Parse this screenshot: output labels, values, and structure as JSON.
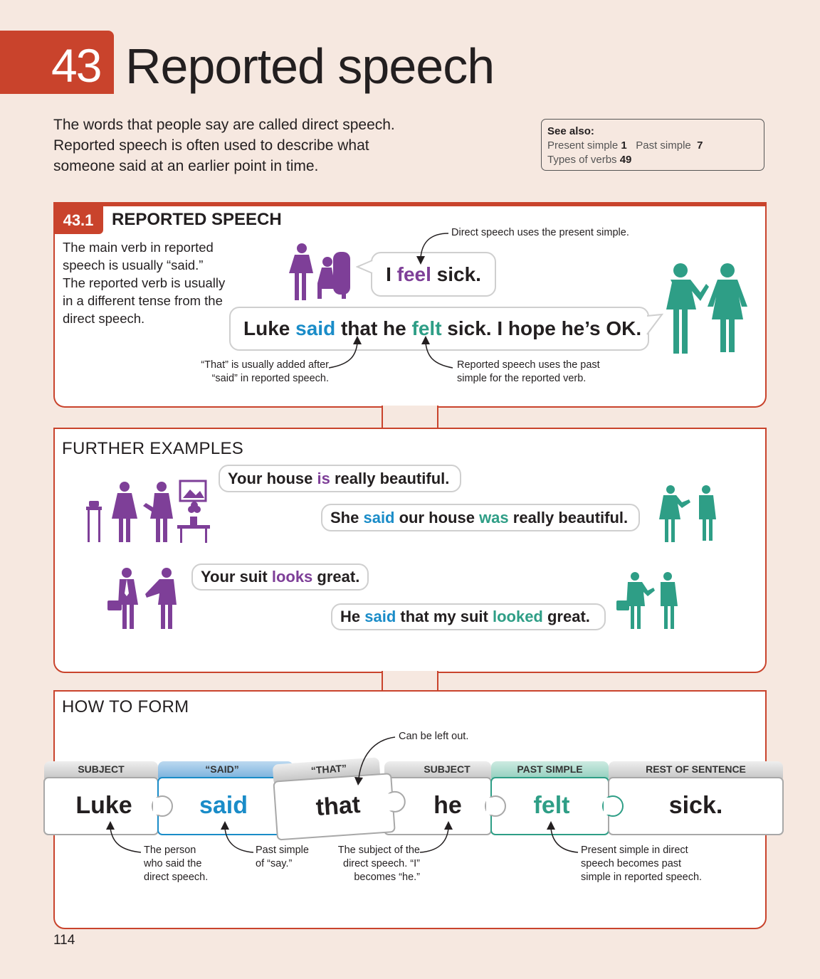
{
  "header": {
    "number": "43",
    "title": "Reported speech"
  },
  "intro": "The words that people say are called direct speech. Reported speech is often used to describe what someone said at an earlier point in time.",
  "see_also": {
    "label": "See also:",
    "items": [
      {
        "text": "Present simple",
        "num": "1"
      },
      {
        "text": "Past simple",
        "num": "7"
      },
      {
        "text": "Types of verbs",
        "num": "49"
      }
    ]
  },
  "section1": {
    "tag": "43.1",
    "title": "REPORTED SPEECH",
    "description": "The main verb in reported speech is usually “said.” The reported verb is usually in a different tense from the direct speech.",
    "direct": {
      "pre": "I ",
      "verb": "feel",
      "post": " sick."
    },
    "reported": {
      "w1": "Luke ",
      "said": "said",
      "w2": " that he ",
      "felt": "felt",
      "w3": " sick. I hope he’s OK."
    },
    "notes": {
      "direct": "Direct speech uses the present simple.",
      "that": "“That” is usually added after “said” in reported speech.",
      "past": "Reported speech uses the past simple for the reported verb."
    }
  },
  "further": {
    "label": "FURTHER EXAMPLES",
    "ex1_direct": {
      "pre": "Your house ",
      "verb": "is",
      "post": " really beautiful."
    },
    "ex1_reported": {
      "pre": "She ",
      "said": "said",
      "mid": " our house ",
      "verb": "was",
      "post": " really beautiful."
    },
    "ex2_direct": {
      "pre": "Your suit ",
      "verb": "looks",
      "post": " great."
    },
    "ex2_reported": {
      "pre": "He ",
      "said": "said",
      "mid": " that my suit ",
      "verb": "looked",
      "post": " great."
    }
  },
  "how_to_form": {
    "label": "HOW TO FORM",
    "pieces": [
      {
        "label": "SUBJECT",
        "word": "Luke"
      },
      {
        "label": "“SAID”",
        "word": "said"
      },
      {
        "label": "“THAT”",
        "word": "that"
      },
      {
        "label": "SUBJECT",
        "word": "he"
      },
      {
        "label": "PAST SIMPLE",
        "word": "felt"
      },
      {
        "label": "REST OF SENTENCE",
        "word": "sick."
      }
    ],
    "notes": {
      "left_out": "Can be left out.",
      "person": "The person who said the direct speech.",
      "past_say": "Past simple of “say.”",
      "subject": "The subject of the direct speech. “I” becomes “he.”",
      "present": "Present simple in direct speech becomes past simple in reported speech."
    }
  },
  "page_number": "114",
  "colors": {
    "accent": "#c9432c",
    "purple": "#7e3f98",
    "blue": "#1a8cc8",
    "teal": "#2e9e86"
  }
}
